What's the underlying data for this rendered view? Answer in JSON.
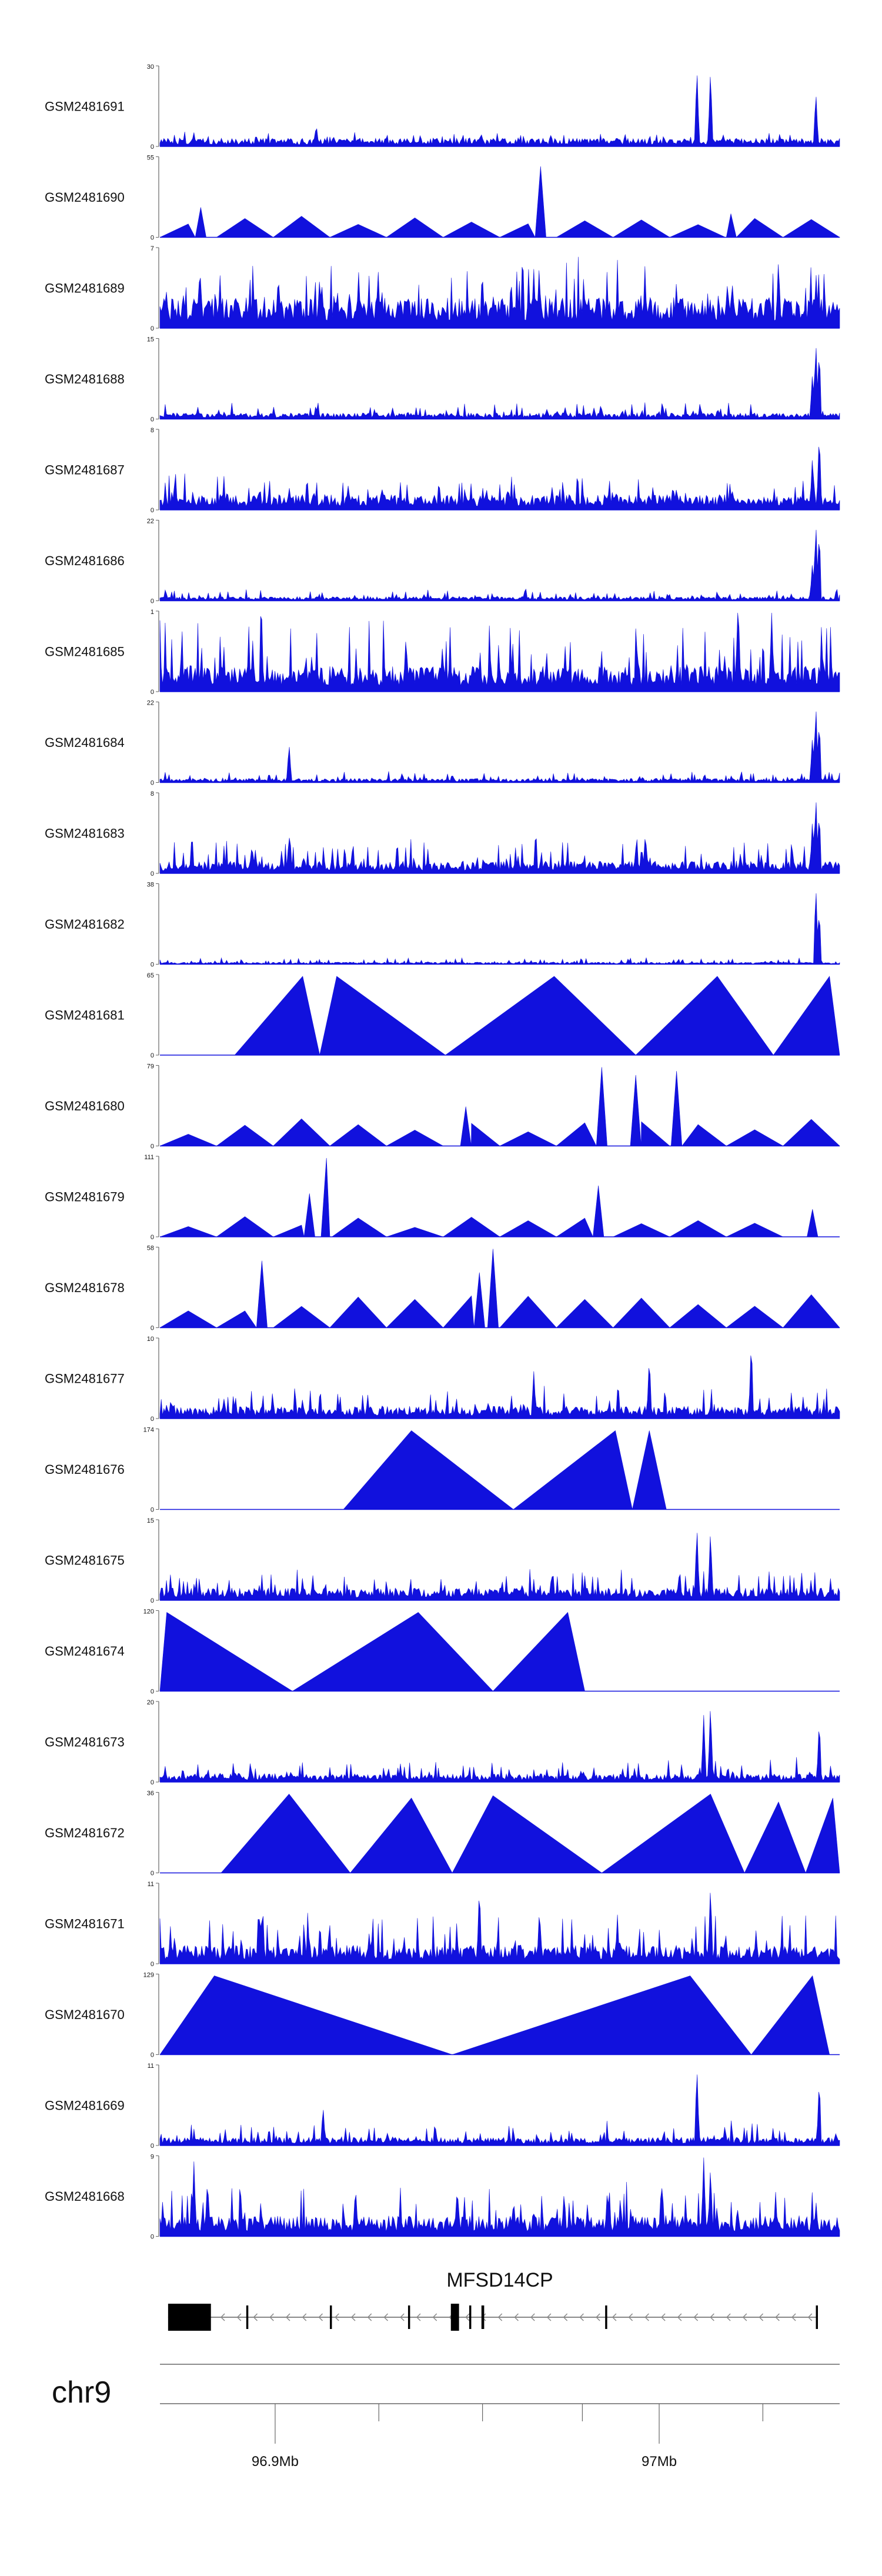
{
  "colors": {
    "signal": "#1111dd",
    "axis": "#666666",
    "gene": "#000000",
    "text": "#111111"
  },
  "chart_data": {
    "type": "area",
    "description_title": "",
    "chromosome": "chr9",
    "x_range_mb": [
      96.87,
      97.047
    ],
    "x_ticks": [
      {
        "pos_mb": 96.9,
        "label": "96.9Mb"
      },
      {
        "pos_mb": 97.0,
        "label": "97Mb"
      }
    ],
    "minor_ticks_mb": [
      96.927,
      96.954,
      96.98,
      97.027
    ],
    "tracks": [
      {
        "name": "GSM2481691",
        "ymax": 30,
        "ymax_label": "30",
        "ymin_label": "0",
        "style": "dense",
        "baseline": 0.08,
        "noise": 0.1,
        "spikes": [
          [
            0.23,
            0.28
          ],
          [
            0.79,
            1.0
          ],
          [
            0.81,
            0.98
          ],
          [
            0.965,
            0.7
          ]
        ]
      },
      {
        "name": "GSM2481690",
        "ymax": 55,
        "ymax_label": "55",
        "ymin_label": "0",
        "style": "sparse",
        "baseline": 0.2,
        "noise": 0.25,
        "spikes": [
          [
            0.06,
            0.38
          ],
          [
            0.56,
            0.9
          ],
          [
            0.84,
            0.3
          ]
        ]
      },
      {
        "name": "GSM2481689",
        "ymax": 7,
        "ymax_label": "7",
        "ymin_label": "0",
        "style": "dense",
        "baseline": 0.3,
        "noise": 0.55,
        "spikes": [
          [
            0.91,
            0.9
          ],
          [
            0.55,
            0.75
          ]
        ]
      },
      {
        "name": "GSM2481688",
        "ymax": 15,
        "ymax_label": "15",
        "ymin_label": "0",
        "style": "dense",
        "baseline": 0.06,
        "noise": 0.15,
        "spikes": [
          [
            0.965,
            1.0
          ],
          [
            0.97,
            0.9
          ],
          [
            0.96,
            0.6
          ]
        ]
      },
      {
        "name": "GSM2481687",
        "ymax": 8,
        "ymax_label": "8",
        "ymin_label": "0",
        "style": "dense",
        "baseline": 0.15,
        "noise": 0.3,
        "spikes": [
          [
            0.97,
            1.0
          ],
          [
            0.96,
            0.7
          ]
        ]
      },
      {
        "name": "GSM2481686",
        "ymax": 22,
        "ymax_label": "22",
        "ymin_label": "0",
        "style": "dense",
        "baseline": 0.04,
        "noise": 0.1,
        "spikes": [
          [
            0.965,
            1.0
          ],
          [
            0.97,
            0.9
          ],
          [
            0.96,
            0.5
          ]
        ]
      },
      {
        "name": "GSM2481685",
        "ymax": 1,
        "ymax_label": "1",
        "ymin_label": "0",
        "style": "dense",
        "baseline": 0.25,
        "noise": 0.7,
        "spikes": [
          [
            0.85,
            1.0
          ],
          [
            0.9,
            1.0
          ]
        ]
      },
      {
        "name": "GSM2481684",
        "ymax": 22,
        "ymax_label": "22",
        "ymin_label": "0",
        "style": "dense",
        "baseline": 0.04,
        "noise": 0.1,
        "spikes": [
          [
            0.19,
            0.5
          ],
          [
            0.965,
            1.0
          ],
          [
            0.97,
            0.8
          ],
          [
            0.96,
            0.6
          ]
        ]
      },
      {
        "name": "GSM2481683",
        "ymax": 8,
        "ymax_label": "8",
        "ymin_label": "0",
        "style": "dense",
        "baseline": 0.12,
        "noise": 0.3,
        "spikes": [
          [
            0.965,
            1.0
          ],
          [
            0.97,
            0.8
          ],
          [
            0.96,
            0.7
          ],
          [
            0.19,
            0.5
          ]
        ]
      },
      {
        "name": "GSM2481682",
        "ymax": 38,
        "ymax_label": "38",
        "ymin_label": "0",
        "style": "dense",
        "baseline": 0.02,
        "noise": 0.06,
        "spikes": [
          [
            0.965,
            1.0
          ],
          [
            0.97,
            0.7
          ]
        ]
      },
      {
        "name": "GSM2481681",
        "ymax": 65,
        "ymax_label": "65",
        "ymin_label": "0",
        "style": "sparse",
        "baseline": 0.0,
        "noise": 0.0,
        "spikes": [
          [
            0.21,
            1.0
          ],
          [
            0.26,
            1.0
          ],
          [
            0.58,
            1.0
          ],
          [
            0.82,
            1.0
          ],
          [
            0.985,
            1.0
          ]
        ]
      },
      {
        "name": "GSM2481680",
        "ymax": 79,
        "ymax_label": "79",
        "ymin_label": "0",
        "style": "sparse",
        "baseline": 0.25,
        "noise": 0.3,
        "spikes": [
          [
            0.65,
            1.0
          ],
          [
            0.7,
            0.9
          ],
          [
            0.76,
            0.95
          ],
          [
            0.45,
            0.5
          ]
        ]
      },
      {
        "name": "GSM2481679",
        "ymax": 111,
        "ymax_label": "111",
        "ymin_label": "0",
        "style": "sparse",
        "baseline": 0.2,
        "noise": 0.25,
        "spikes": [
          [
            0.245,
            1.0
          ],
          [
            0.22,
            0.55
          ],
          [
            0.645,
            0.65
          ],
          [
            0.96,
            0.35
          ]
        ]
      },
      {
        "name": "GSM2481678",
        "ymax": 58,
        "ymax_label": "58",
        "ymin_label": "0",
        "style": "sparse",
        "baseline": 0.3,
        "noise": 0.35,
        "spikes": [
          [
            0.15,
            0.85
          ],
          [
            0.49,
            1.0
          ],
          [
            0.47,
            0.7
          ]
        ]
      },
      {
        "name": "GSM2481677",
        "ymax": 10,
        "ymax_label": "10",
        "ymin_label": "0",
        "style": "dense",
        "baseline": 0.12,
        "noise": 0.28,
        "spikes": [
          [
            0.87,
            1.0
          ],
          [
            0.72,
            0.8
          ],
          [
            0.55,
            0.6
          ]
        ]
      },
      {
        "name": "GSM2481676",
        "ymax": 174,
        "ymax_label": "174",
        "ymin_label": "0",
        "style": "sparse",
        "baseline": 0.0,
        "noise": 0.0,
        "spikes": [
          [
            0.37,
            1.0
          ],
          [
            0.67,
            1.0
          ],
          [
            0.72,
            1.0
          ]
        ]
      },
      {
        "name": "GSM2481675",
        "ymax": 15,
        "ymax_label": "15",
        "ymin_label": "0",
        "style": "dense",
        "baseline": 0.12,
        "noise": 0.28,
        "spikes": [
          [
            0.79,
            0.95
          ],
          [
            0.81,
            0.9
          ]
        ]
      },
      {
        "name": "GSM2481674",
        "ymax": 120,
        "ymax_label": "120",
        "ymin_label": "0",
        "style": "sparse",
        "baseline": 0.0,
        "noise": 0.0,
        "spikes": [
          [
            0.01,
            1.0
          ],
          [
            0.38,
            1.0
          ],
          [
            0.6,
            1.0
          ]
        ]
      },
      {
        "name": "GSM2481673",
        "ymax": 20,
        "ymax_label": "20",
        "ymin_label": "0",
        "style": "dense",
        "baseline": 0.08,
        "noise": 0.22,
        "spikes": [
          [
            0.81,
            1.0
          ],
          [
            0.8,
            0.85
          ],
          [
            0.97,
            0.8
          ]
        ]
      },
      {
        "name": "GSM2481672",
        "ymax": 36,
        "ymax_label": "36",
        "ymin_label": "0",
        "style": "sparse",
        "baseline": 0.0,
        "noise": 0.0,
        "spikes": [
          [
            0.19,
            1.0
          ],
          [
            0.37,
            0.95
          ],
          [
            0.49,
            0.98
          ],
          [
            0.81,
            1.0
          ],
          [
            0.91,
            0.9
          ],
          [
            0.99,
            0.95
          ]
        ]
      },
      {
        "name": "GSM2481671",
        "ymax": 11,
        "ymax_label": "11",
        "ymin_label": "0",
        "style": "dense",
        "baseline": 0.18,
        "noise": 0.5,
        "spikes": [
          [
            0.47,
            1.0
          ],
          [
            0.81,
            1.0
          ]
        ]
      },
      {
        "name": "GSM2481670",
        "ymax": 129,
        "ymax_label": "129",
        "ymin_label": "0",
        "style": "sparse",
        "baseline": 0.0,
        "noise": 0.0,
        "spikes": [
          [
            0.08,
            1.0
          ],
          [
            0.78,
            1.0
          ],
          [
            0.96,
            1.0
          ]
        ]
      },
      {
        "name": "GSM2481669",
        "ymax": 11,
        "ymax_label": "11",
        "ymin_label": "0",
        "style": "dense",
        "baseline": 0.08,
        "noise": 0.22,
        "spikes": [
          [
            0.79,
            1.0
          ],
          [
            0.97,
            0.85
          ],
          [
            0.24,
            0.5
          ]
        ]
      },
      {
        "name": "GSM2481668",
        "ymax": 9,
        "ymax_label": "9",
        "ymin_label": "0",
        "style": "dense",
        "baseline": 0.2,
        "noise": 0.45,
        "spikes": [
          [
            0.8,
            1.0
          ],
          [
            0.05,
            0.95
          ],
          [
            0.07,
            0.75
          ],
          [
            0.81,
            0.9
          ]
        ]
      }
    ],
    "gene": {
      "name": "MFSD14CP",
      "strand": "-",
      "exons_frac": [
        [
          0.012,
          0.075
        ],
        [
          0.127,
          0.13
        ],
        [
          0.25,
          0.253
        ],
        [
          0.365,
          0.368
        ],
        [
          0.428,
          0.44
        ],
        [
          0.455,
          0.458
        ],
        [
          0.473,
          0.477
        ],
        [
          0.655,
          0.658
        ],
        [
          0.965,
          0.968
        ]
      ]
    }
  }
}
